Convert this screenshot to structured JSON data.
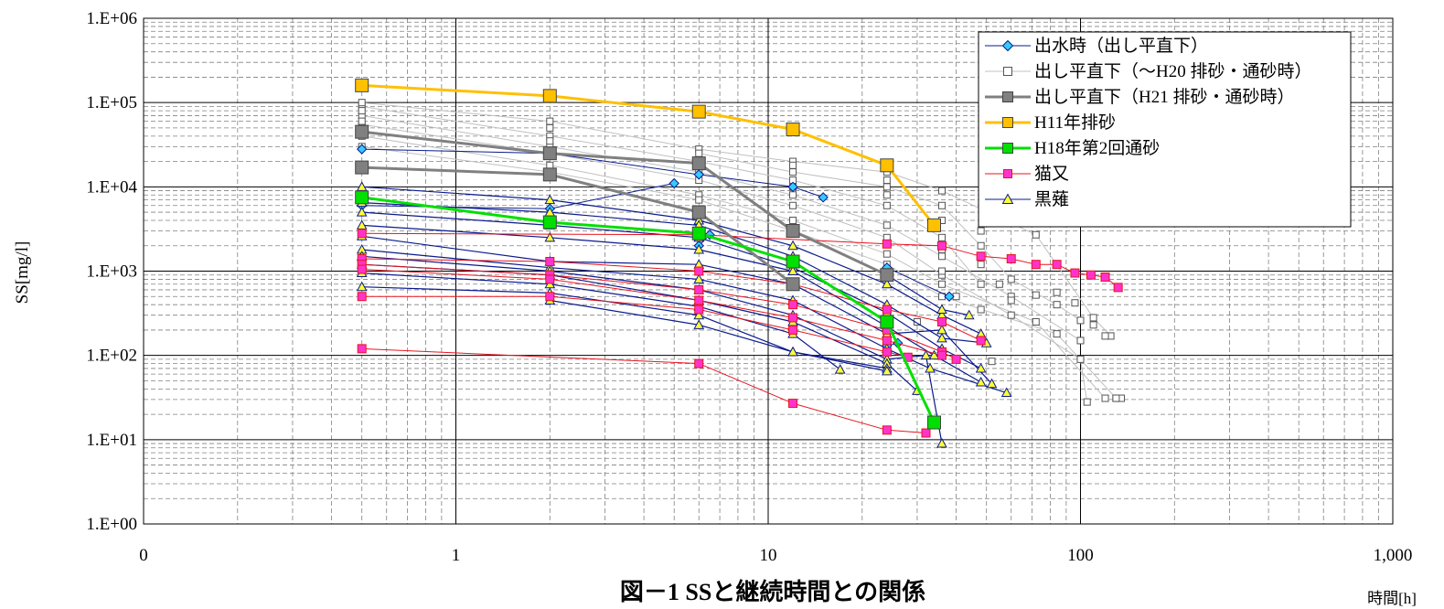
{
  "caption": "図－1 SSと継続時間との関係",
  "chart_data": {
    "type": "line",
    "title": "",
    "xlabel": "時間[h]",
    "ylabel": "SS[mg/l]",
    "xscale": "log",
    "yscale": "log",
    "xlim": [
      0.1,
      1000
    ],
    "ylim": [
      1,
      1000000
    ],
    "x_ticks": [
      {
        "v": 0.1,
        "label": "0"
      },
      {
        "v": 1,
        "label": "1"
      },
      {
        "v": 10,
        "label": "10"
      },
      {
        "v": 100,
        "label": "100"
      },
      {
        "v": 1000,
        "label": "1,000"
      }
    ],
    "y_ticks": [
      {
        "v": 1,
        "label": "1.E+00"
      },
      {
        "v": 10,
        "label": "1.E+01"
      },
      {
        "v": 100,
        "label": "1.E+02"
      },
      {
        "v": 1000,
        "label": "1.E+03"
      },
      {
        "v": 10000,
        "label": "1.E+04"
      },
      {
        "v": 100000,
        "label": "1.E+05"
      },
      {
        "v": 1000000,
        "label": "1.E+06"
      }
    ],
    "grid": true,
    "legend_position": "top-right",
    "series": [
      {
        "name": "出し平直下（～H20 排砂・通砂時）",
        "color": "#c0c0c0",
        "marker": "square-open",
        "width": 1,
        "size": 7,
        "lines": [
          [
            [
              0.5,
              90000
            ],
            [
              2,
              40000
            ],
            [
              6,
              20000
            ],
            [
              12,
              12000
            ],
            [
              24,
              6000
            ],
            [
              36,
              2500
            ],
            [
              48,
              700
            ]
          ],
          [
            [
              0.5,
              70000
            ],
            [
              2,
              30000
            ],
            [
              6,
              15000
            ],
            [
              12,
              8000
            ],
            [
              24,
              3500
            ],
            [
              36,
              1500
            ],
            [
              60,
              500
            ],
            [
              100,
              150
            ]
          ],
          [
            [
              0.5,
              55000
            ],
            [
              2,
              25000
            ],
            [
              6,
              12000
            ],
            [
              12,
              6000
            ],
            [
              24,
              2500
            ],
            [
              36,
              900
            ],
            [
              60,
              300
            ],
            [
              100,
              90
            ],
            [
              105,
              28
            ]
          ],
          [
            [
              0.5,
              40000
            ],
            [
              2,
              18000
            ],
            [
              6,
              8000
            ],
            [
              12,
              4000
            ],
            [
              24,
              1600
            ],
            [
              36,
              700
            ],
            [
              72,
              250
            ],
            [
              120,
              31
            ]
          ],
          [
            [
              0.5,
              100000
            ],
            [
              2,
              60000
            ],
            [
              6,
              28000
            ],
            [
              12,
              20000
            ],
            [
              24,
              15000
            ],
            [
              36,
              9000
            ],
            [
              72,
              2700
            ],
            [
              110,
              280
            ],
            [
              125,
              170
            ]
          ],
          [
            [
              0.5,
              30000
            ],
            [
              2,
              15000
            ],
            [
              6,
              7000
            ],
            [
              12,
              3000
            ],
            [
              24,
              1200
            ],
            [
              36,
              500
            ],
            [
              84,
              180
            ],
            [
              130,
              31
            ]
          ],
          [
            [
              6,
              25000
            ],
            [
              12,
              15000
            ],
            [
              24,
              10000
            ],
            [
              36,
              6000
            ],
            [
              48,
              2000
            ],
            [
              60,
              800
            ],
            [
              84,
              400
            ],
            [
              100,
              260
            ]
          ]
        ],
        "points": [
          [
            0.5,
            80000
          ],
          [
            0.5,
            60000
          ],
          [
            0.5,
            50000
          ],
          [
            2,
            50000
          ],
          [
            2,
            35000
          ],
          [
            6,
            18000
          ],
          [
            12,
            18000
          ],
          [
            12,
            10000
          ],
          [
            24,
            12000
          ],
          [
            24,
            8000
          ],
          [
            36,
            4000
          ],
          [
            36,
            1800
          ],
          [
            36,
            1000
          ],
          [
            48,
            3000
          ],
          [
            48,
            1200
          ],
          [
            48,
            350
          ],
          [
            55,
            700
          ],
          [
            60,
            450
          ],
          [
            72,
            520
          ],
          [
            84,
            560
          ],
          [
            96,
            420
          ],
          [
            110,
            230
          ],
          [
            120,
            170
          ],
          [
            135,
            31
          ],
          [
            130,
            31
          ],
          [
            52,
            85
          ],
          [
            30,
            250
          ],
          [
            40,
            500
          ]
        ]
      },
      {
        "name": "出水時（出し平直下）",
        "color": "#0a1a8c",
        "fill": "#33ccff",
        "marker": "diamond",
        "width": 1,
        "size": 8,
        "lines": [
          [
            [
              0.5,
              28000
            ],
            [
              2,
              25000
            ],
            [
              6,
              14000
            ],
            [
              12,
              10000
            ],
            [
              15,
              7500
            ]
          ],
          [
            [
              0.5,
              6000
            ],
            [
              2,
              5500
            ],
            [
              5,
              11000
            ]
          ],
          [
            [
              6,
              2000
            ],
            [
              6.5,
              2700
            ]
          ],
          [
            [
              24,
              1100
            ],
            [
              38,
              500
            ]
          ],
          [
            [
              24,
              130
            ],
            [
              26,
              140
            ]
          ]
        ],
        "points": []
      },
      {
        "name": "黒薙",
        "color": "#0a1a8c",
        "fill": "#ffff33",
        "marker": "triangle",
        "width": 1.2,
        "size": 8,
        "lines": [
          [
            [
              0.5,
              10000
            ],
            [
              2,
              7000
            ],
            [
              6,
              4000
            ],
            [
              12,
              2000
            ],
            [
              24,
              700
            ],
            [
              36,
              300
            ],
            [
              48,
              180
            ]
          ],
          [
            [
              0.5,
              6500
            ],
            [
              2,
              5000
            ],
            [
              6,
              3500
            ],
            [
              12,
              1500
            ],
            [
              24,
              400
            ],
            [
              36,
              160
            ],
            [
              50,
              140
            ]
          ],
          [
            [
              0.5,
              5000
            ],
            [
              2,
              3500
            ],
            [
              6,
              2500
            ],
            [
              12,
              1100
            ],
            [
              24,
              320
            ],
            [
              36,
              120
            ],
            [
              48,
              70
            ]
          ],
          [
            [
              0.5,
              3500
            ],
            [
              2,
              2500
            ],
            [
              6,
              1800
            ],
            [
              12,
              1000
            ],
            [
              24,
              220
            ],
            [
              34,
              100
            ],
            [
              48,
              48
            ]
          ],
          [
            [
              0.5,
              2600
            ],
            [
              2,
              1300
            ],
            [
              6,
              1200
            ],
            [
              12,
              700
            ],
            [
              24,
              180
            ],
            [
              36,
              200
            ],
            [
              52,
              46
            ]
          ],
          [
            [
              0.5,
              1800
            ],
            [
              2,
              1100
            ],
            [
              6,
              800
            ],
            [
              12,
              450
            ],
            [
              24,
              120
            ],
            [
              33,
              70
            ],
            [
              58,
              36
            ]
          ],
          [
            [
              0.5,
              1500
            ],
            [
              2,
              1000
            ],
            [
              6,
              600
            ],
            [
              12,
              300
            ],
            [
              24,
              90
            ],
            [
              32,
              100
            ],
            [
              36,
              9
            ]
          ],
          [
            [
              0.5,
              1200
            ],
            [
              2,
              900
            ],
            [
              6,
              450
            ],
            [
              12,
              250
            ],
            [
              24,
              80
            ],
            [
              30,
              38
            ]
          ],
          [
            [
              0.5,
              950
            ],
            [
              2,
              700
            ],
            [
              6,
              380
            ],
            [
              12,
              180
            ],
            [
              17,
              68
            ]
          ],
          [
            [
              0.5,
              650
            ],
            [
              2,
              550
            ],
            [
              6,
              300
            ],
            [
              12,
              110
            ],
            [
              24,
              70
            ]
          ],
          [
            [
              2,
              450
            ],
            [
              6,
              230
            ],
            [
              12,
              110
            ],
            [
              24,
              65
            ]
          ],
          [
            [
              12,
              3000
            ],
            [
              24,
              900
            ],
            [
              36,
              350
            ],
            [
              44,
              300
            ]
          ]
        ],
        "points": []
      },
      {
        "name": "猫又",
        "color": "#e8141e",
        "fill": "#ff33cc",
        "marker": "square",
        "width": 1,
        "size": 9,
        "lines": [
          [
            [
              0.5,
              2800
            ],
            [
              6,
              2700
            ],
            [
              24,
              2100
            ],
            [
              36,
              2000
            ],
            [
              48,
              1500
            ],
            [
              60,
              1400
            ],
            [
              72,
              1200
            ],
            [
              84,
              1200
            ],
            [
              96,
              950
            ],
            [
              108,
              900
            ],
            [
              120,
              850
            ],
            [
              132,
              640
            ]
          ],
          [
            [
              0.5,
              1400
            ],
            [
              2,
              1300
            ],
            [
              6,
              1000
            ],
            [
              12,
              700
            ],
            [
              24,
              350
            ],
            [
              36,
              250
            ],
            [
              48,
              150
            ]
          ],
          [
            [
              0.5,
              1200
            ],
            [
              2,
              900
            ],
            [
              6,
              600
            ],
            [
              12,
              400
            ],
            [
              24,
              200
            ],
            [
              36,
              110
            ],
            [
              40,
              90
            ]
          ],
          [
            [
              0.5,
              1050
            ],
            [
              2,
              800
            ],
            [
              6,
              450
            ],
            [
              12,
              280
            ],
            [
              24,
              150
            ],
            [
              36,
              100
            ]
          ],
          [
            [
              0.5,
              500
            ],
            [
              2,
              500
            ],
            [
              6,
              350
            ],
            [
              12,
              200
            ],
            [
              24,
              110
            ],
            [
              28,
              95
            ]
          ],
          [
            [
              0.5,
              120
            ],
            [
              6,
              80
            ],
            [
              12,
              27
            ],
            [
              24,
              13
            ],
            [
              32,
              12
            ]
          ]
        ],
        "points": []
      },
      {
        "name": "出し平直下（H21 排砂・通砂時）",
        "color": "#808080",
        "fill": "#808080",
        "marker": "square",
        "width": 3,
        "size": 14,
        "lines": [
          [
            [
              0.5,
              45000
            ],
            [
              2,
              25000
            ],
            [
              6,
              19000
            ],
            [
              12,
              3000
            ],
            [
              24,
              900
            ]
          ],
          [
            [
              0.5,
              17000
            ],
            [
              2,
              14000
            ],
            [
              6,
              5000
            ],
            [
              12,
              700
            ]
          ]
        ],
        "points": []
      },
      {
        "name": "H18年第2回通砂",
        "color": "#00e000",
        "fill": "#00e000",
        "marker": "square",
        "width": 3,
        "size": 14,
        "lines": [
          [
            [
              0.5,
              7500
            ],
            [
              2,
              3800
            ],
            [
              6,
              2800
            ],
            [
              12,
              1300
            ],
            [
              24,
              250
            ],
            [
              34,
              16
            ]
          ]
        ],
        "points": []
      },
      {
        "name": "H11年排砂",
        "color": "#ffc000",
        "fill": "#ffc000",
        "marker": "square",
        "width": 3,
        "size": 14,
        "lines": [
          [
            [
              0.5,
              160000
            ],
            [
              2,
              120000
            ],
            [
              6,
              78000
            ],
            [
              12,
              48000
            ],
            [
              24,
              18000
            ],
            [
              34,
              3500
            ]
          ]
        ],
        "points": []
      }
    ]
  },
  "legend": [
    {
      "label": "出水時（出し平直下）",
      "color": "#0a1a8c",
      "fill": "#33ccff",
      "marker": "diamond",
      "width": 1
    },
    {
      "label": "出し平直下（～H20 排砂・通砂時）",
      "color": "#c0c0c0",
      "fill": "#ffffff",
      "marker": "square-open",
      "width": 1
    },
    {
      "label": "出し平直下（H21 排砂・通砂時）",
      "color": "#808080",
      "fill": "#808080",
      "marker": "square",
      "width": 3
    },
    {
      "label": "H11年排砂",
      "color": "#ffc000",
      "fill": "#ffc000",
      "marker": "square",
      "width": 3
    },
    {
      "label": "H18年第2回通砂",
      "color": "#00e000",
      "fill": "#00e000",
      "marker": "square",
      "width": 3
    },
    {
      "label": "猫又",
      "color": "#e8141e",
      "fill": "#ff33cc",
      "marker": "square",
      "width": 1
    },
    {
      "label": "黒薙",
      "color": "#0a1a8c",
      "fill": "#ffff33",
      "marker": "triangle",
      "width": 1
    }
  ]
}
